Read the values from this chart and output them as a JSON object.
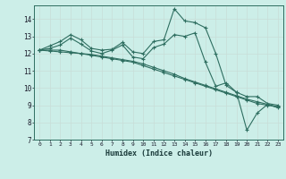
{
  "xlabel": "Humidex (Indice chaleur)",
  "ylabel": "",
  "bg_color": "#cceee8",
  "line_color": "#2e6e60",
  "marker_color": "#2e6e60",
  "xlim": [
    -0.5,
    23.5
  ],
  "ylim": [
    7,
    14.8
  ],
  "yticks": [
    7,
    8,
    9,
    10,
    11,
    12,
    13,
    14
  ],
  "xticks": [
    0,
    1,
    2,
    3,
    4,
    5,
    6,
    7,
    8,
    9,
    10,
    11,
    12,
    13,
    14,
    15,
    16,
    17,
    18,
    19,
    20,
    21,
    22,
    23
  ],
  "series": [
    [
      12.2,
      12.45,
      12.7,
      13.1,
      12.8,
      12.3,
      12.2,
      12.25,
      12.65,
      12.1,
      12.0,
      12.7,
      12.8,
      14.6,
      13.9,
      13.8,
      13.5,
      12.0,
      10.15,
      9.75,
      7.55,
      8.55,
      9.05,
      8.85
    ],
    [
      12.2,
      12.3,
      12.5,
      12.9,
      12.55,
      12.15,
      12.0,
      12.2,
      12.5,
      11.8,
      11.7,
      12.35,
      12.55,
      13.1,
      13.0,
      13.2,
      11.5,
      10.1,
      10.3,
      9.75,
      9.5,
      9.5,
      9.1,
      9.0
    ],
    [
      12.2,
      12.2,
      12.2,
      12.1,
      12.0,
      11.9,
      11.8,
      11.7,
      11.6,
      11.5,
      11.3,
      11.1,
      10.9,
      10.7,
      10.5,
      10.3,
      10.1,
      9.9,
      9.7,
      9.5,
      9.3,
      9.1,
      9.0,
      8.9
    ],
    [
      12.2,
      12.15,
      12.1,
      12.05,
      12.0,
      11.95,
      11.85,
      11.75,
      11.65,
      11.55,
      11.4,
      11.2,
      11.0,
      10.8,
      10.55,
      10.35,
      10.15,
      9.95,
      9.75,
      9.55,
      9.35,
      9.2,
      9.05,
      8.9
    ]
  ]
}
